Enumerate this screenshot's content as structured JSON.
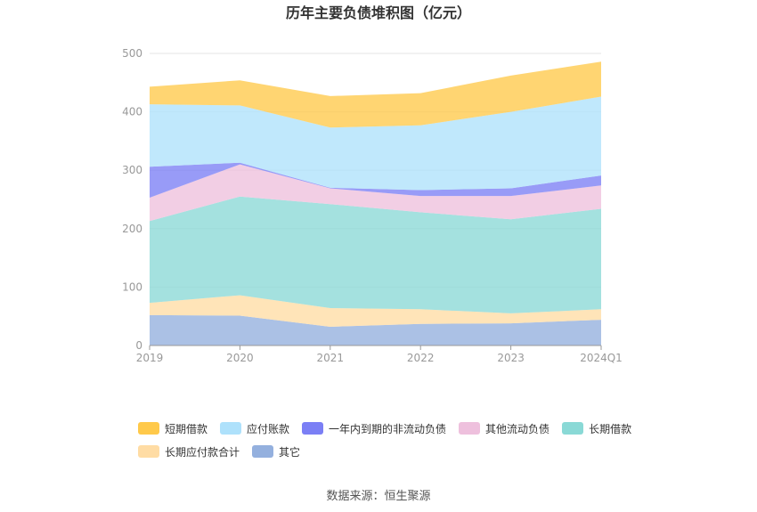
{
  "chart_data": {
    "type": "area",
    "stacked": true,
    "title": "历年主要负债堆积图（亿元）",
    "categories": [
      "2019",
      "2020",
      "2021",
      "2022",
      "2023",
      "2024Q1"
    ],
    "ylim": [
      0,
      500
    ],
    "yticks": [
      0,
      100,
      200,
      300,
      400,
      500
    ],
    "grid": true,
    "legend_position": "bottom",
    "series": [
      {
        "name": "其它",
        "color": "#94b0de",
        "values": [
          52,
          51,
          32,
          37,
          38,
          44
        ]
      },
      {
        "name": "长期应付款合计",
        "color": "#ffdca4",
        "values": [
          21,
          35,
          32,
          25,
          17,
          18
        ]
      },
      {
        "name": "长期借款",
        "color": "#8ad9d6",
        "values": [
          140,
          169,
          178,
          166,
          161,
          172
        ]
      },
      {
        "name": "其他流动负债",
        "color": "#eec0dd",
        "values": [
          40,
          55,
          27,
          28,
          40,
          40
        ]
      },
      {
        "name": "一年内到期的非流动负债",
        "color": "#7b7ff5",
        "values": [
          53,
          3,
          1,
          10,
          13,
          17
        ]
      },
      {
        "name": "应付账款",
        "color": "#aee1fb",
        "values": [
          107,
          98,
          103,
          111,
          131,
          135
        ]
      },
      {
        "name": "短期借款",
        "color": "#ffc94a",
        "values": [
          30,
          43,
          54,
          55,
          62,
          60
        ]
      }
    ],
    "legend_order": [
      "短期借款",
      "应付账款",
      "一年内到期的非流动负债",
      "其他流动负债",
      "长期借款",
      "长期应付款合计",
      "其它"
    ]
  },
  "source": "数据来源：恒生聚源"
}
